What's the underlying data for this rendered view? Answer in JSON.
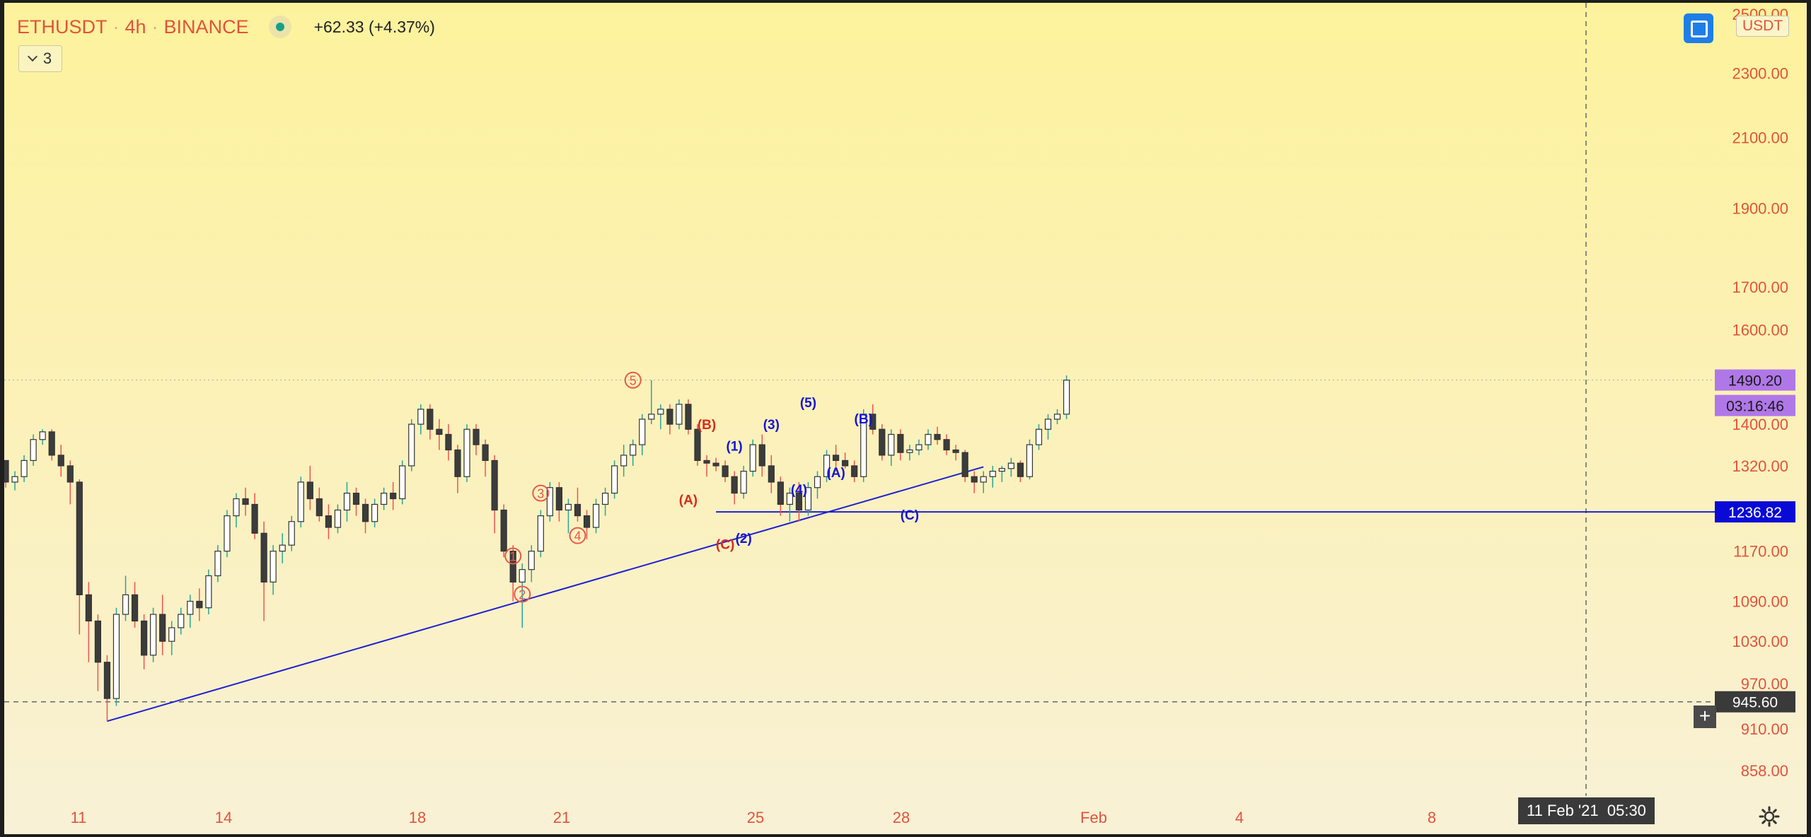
{
  "legend": {
    "symbol": "ETHUSDT",
    "interval": "4h",
    "exchange": "BINANCE",
    "separator": "·",
    "change": "+62.33 (+4.37%)"
  },
  "indicators_toggle": {
    "count": "3"
  },
  "currency_label": "USDT",
  "icons": [
    "chevron-down-icon",
    "fullscreen-icon",
    "plus-icon",
    "gear-icon"
  ],
  "colors": {
    "up_candle": "#ffffff",
    "down_candle": "#3c3c3c",
    "up_wick": "#26a69a",
    "down_wick": "#ef5350",
    "trendline": "#1d1fd4",
    "wave_red": "#d8291c",
    "wave_blue": "#1515d6",
    "price_tag_last": "#b077e8",
    "price_tag_level": "#0a0ad6",
    "axis_text": "#e0533d"
  },
  "chart_data": {
    "type": "candlestick",
    "symbol": "ETHUSDT",
    "interval": "4h",
    "y_scale": "log",
    "ylim": [
      836,
      2540
    ],
    "price_ticks": [
      "2500.00",
      "2300.00",
      "2100.00",
      "1900.00",
      "1700.00",
      "1600.00",
      "1400.00",
      "1320.00",
      "1170.00",
      "1090.00",
      "1030.00",
      "970.00",
      "910.00",
      "858.00"
    ],
    "x_labels": [
      "11",
      "14",
      "18",
      "21",
      "25",
      "28",
      "Feb",
      "4",
      "8"
    ],
    "candles": [
      [
        1330,
        1330,
        1280,
        1290
      ],
      [
        1290,
        1310,
        1275,
        1300
      ],
      [
        1300,
        1340,
        1290,
        1330
      ],
      [
        1330,
        1380,
        1320,
        1370
      ],
      [
        1370,
        1390,
        1360,
        1385
      ],
      [
        1385,
        1390,
        1330,
        1340
      ],
      [
        1340,
        1360,
        1300,
        1320
      ],
      [
        1320,
        1330,
        1250,
        1290
      ],
      [
        1290,
        1295,
        1040,
        1100
      ],
      [
        1100,
        1120,
        1000,
        1060
      ],
      [
        1060,
        1070,
        960,
        1000
      ],
      [
        1000,
        1010,
        920,
        950
      ],
      [
        950,
        1080,
        940,
        1070
      ],
      [
        1070,
        1130,
        1060,
        1100
      ],
      [
        1100,
        1120,
        1050,
        1060
      ],
      [
        1060,
        1070,
        990,
        1010
      ],
      [
        1010,
        1080,
        1000,
        1070
      ],
      [
        1070,
        1100,
        1010,
        1030
      ],
      [
        1030,
        1060,
        1010,
        1050
      ],
      [
        1050,
        1080,
        1040,
        1070
      ],
      [
        1070,
        1100,
        1050,
        1090
      ],
      [
        1090,
        1110,
        1060,
        1080
      ],
      [
        1080,
        1140,
        1070,
        1130
      ],
      [
        1130,
        1180,
        1120,
        1170
      ],
      [
        1170,
        1240,
        1160,
        1230
      ],
      [
        1230,
        1270,
        1210,
        1260
      ],
      [
        1260,
        1280,
        1230,
        1250
      ],
      [
        1250,
        1270,
        1190,
        1200
      ],
      [
        1200,
        1220,
        1060,
        1120
      ],
      [
        1120,
        1180,
        1100,
        1170
      ],
      [
        1170,
        1200,
        1150,
        1180
      ],
      [
        1180,
        1230,
        1170,
        1220
      ],
      [
        1220,
        1300,
        1210,
        1290
      ],
      [
        1290,
        1320,
        1240,
        1260
      ],
      [
        1260,
        1280,
        1220,
        1230
      ],
      [
        1230,
        1250,
        1190,
        1210
      ],
      [
        1210,
        1250,
        1200,
        1240
      ],
      [
        1240,
        1290,
        1220,
        1270
      ],
      [
        1270,
        1280,
        1230,
        1250
      ],
      [
        1250,
        1260,
        1200,
        1220
      ],
      [
        1220,
        1260,
        1210,
        1250
      ],
      [
        1250,
        1280,
        1240,
        1270
      ],
      [
        1270,
        1290,
        1240,
        1260
      ],
      [
        1260,
        1330,
        1250,
        1320
      ],
      [
        1320,
        1410,
        1310,
        1400
      ],
      [
        1400,
        1440,
        1380,
        1430
      ],
      [
        1430,
        1440,
        1370,
        1390
      ],
      [
        1390,
        1410,
        1350,
        1380
      ],
      [
        1380,
        1400,
        1330,
        1350
      ],
      [
        1350,
        1360,
        1270,
        1300
      ],
      [
        1300,
        1400,
        1290,
        1390
      ],
      [
        1390,
        1400,
        1340,
        1360
      ],
      [
        1360,
        1370,
        1300,
        1330
      ],
      [
        1330,
        1340,
        1200,
        1240
      ],
      [
        1240,
        1250,
        1160,
        1170
      ],
      [
        1170,
        1180,
        1090,
        1120
      ],
      [
        1120,
        1150,
        1050,
        1140
      ],
      [
        1140,
        1180,
        1120,
        1170
      ],
      [
        1170,
        1240,
        1160,
        1230
      ],
      [
        1230,
        1290,
        1220,
        1280
      ],
      [
        1280,
        1290,
        1220,
        1240
      ],
      [
        1240,
        1260,
        1200,
        1250
      ],
      [
        1250,
        1280,
        1220,
        1230
      ],
      [
        1230,
        1240,
        1190,
        1210
      ],
      [
        1210,
        1260,
        1200,
        1250
      ],
      [
        1250,
        1280,
        1230,
        1270
      ],
      [
        1270,
        1330,
        1260,
        1320
      ],
      [
        1320,
        1360,
        1300,
        1340
      ],
      [
        1340,
        1370,
        1320,
        1360
      ],
      [
        1360,
        1420,
        1340,
        1410
      ],
      [
        1410,
        1490,
        1400,
        1420
      ],
      [
        1420,
        1440,
        1390,
        1430
      ],
      [
        1430,
        1440,
        1380,
        1400
      ],
      [
        1400,
        1450,
        1390,
        1440
      ],
      [
        1440,
        1450,
        1380,
        1390
      ],
      [
        1390,
        1400,
        1320,
        1330
      ],
      [
        1330,
        1340,
        1300,
        1325
      ],
      [
        1325,
        1335,
        1310,
        1320
      ],
      [
        1320,
        1330,
        1290,
        1300
      ],
      [
        1300,
        1310,
        1250,
        1270
      ],
      [
        1270,
        1320,
        1260,
        1310
      ],
      [
        1310,
        1370,
        1300,
        1360
      ],
      [
        1360,
        1380,
        1300,
        1320
      ],
      [
        1320,
        1340,
        1270,
        1290
      ],
      [
        1290,
        1300,
        1230,
        1250
      ],
      [
        1250,
        1280,
        1220,
        1270
      ],
      [
        1270,
        1290,
        1220,
        1240
      ],
      [
        1240,
        1290,
        1230,
        1280
      ],
      [
        1280,
        1310,
        1260,
        1300
      ],
      [
        1300,
        1350,
        1290,
        1340
      ],
      [
        1340,
        1360,
        1310,
        1330
      ],
      [
        1330,
        1345,
        1315,
        1320
      ],
      [
        1320,
        1330,
        1290,
        1300
      ],
      [
        1300,
        1430,
        1290,
        1420
      ],
      [
        1420,
        1440,
        1380,
        1390
      ],
      [
        1390,
        1400,
        1330,
        1340
      ],
      [
        1340,
        1390,
        1320,
        1380
      ],
      [
        1380,
        1390,
        1330,
        1345
      ],
      [
        1345,
        1360,
        1330,
        1350
      ],
      [
        1350,
        1370,
        1340,
        1360
      ],
      [
        1360,
        1390,
        1350,
        1380
      ],
      [
        1380,
        1395,
        1360,
        1370
      ],
      [
        1370,
        1380,
        1340,
        1350
      ],
      [
        1350,
        1360,
        1330,
        1345
      ],
      [
        1345,
        1350,
        1290,
        1300
      ],
      [
        1300,
        1310,
        1270,
        1290
      ],
      [
        1290,
        1310,
        1270,
        1300
      ],
      [
        1300,
        1320,
        1280,
        1310
      ],
      [
        1310,
        1320,
        1290,
        1315
      ],
      [
        1315,
        1335,
        1300,
        1325
      ],
      [
        1325,
        1330,
        1290,
        1300
      ],
      [
        1300,
        1370,
        1295,
        1360
      ],
      [
        1360,
        1400,
        1350,
        1390
      ],
      [
        1390,
        1420,
        1370,
        1410
      ],
      [
        1410,
        1430,
        1400,
        1420
      ],
      [
        1420,
        1500,
        1410,
        1490
      ]
    ],
    "wave_labels": [
      {
        "text": "1",
        "style": "circled",
        "color": "red",
        "bar": 55,
        "price": 1162
      },
      {
        "text": "2",
        "style": "circled",
        "color": "red",
        "bar": 56,
        "price": 1101
      },
      {
        "text": "3",
        "style": "circled",
        "color": "red",
        "bar": 58,
        "price": 1270
      },
      {
        "text": "4",
        "style": "circled",
        "color": "red",
        "bar": 62,
        "price": 1196
      },
      {
        "text": "5",
        "style": "circled",
        "color": "red",
        "bar": 68,
        "price": 1490
      },
      {
        "text": "(A)",
        "style": "paren",
        "color": "red",
        "bar": 74,
        "price": 1259
      },
      {
        "text": "(B)",
        "style": "paren",
        "color": "red",
        "bar": 76,
        "price": 1400
      },
      {
        "text": "(C)",
        "style": "paren",
        "color": "red",
        "bar": 78,
        "price": 1182
      },
      {
        "text": "(1)",
        "style": "paren",
        "color": "blue",
        "bar": 79,
        "price": 1358
      },
      {
        "text": "(2)",
        "style": "paren",
        "color": "blue",
        "bar": 80,
        "price": 1192
      },
      {
        "text": "(3)",
        "style": "paren",
        "color": "blue",
        "bar": 83,
        "price": 1400
      },
      {
        "text": "(4)",
        "style": "paren",
        "color": "blue",
        "bar": 86,
        "price": 1277
      },
      {
        "text": "(5)",
        "style": "paren",
        "color": "blue",
        "bar": 87,
        "price": 1444
      },
      {
        "text": "(A)",
        "style": "paren",
        "color": "blue",
        "bar": 90,
        "price": 1308
      },
      {
        "text": "(B)",
        "style": "paren",
        "color": "blue",
        "bar": 93,
        "price": 1411
      },
      {
        "text": "(C)",
        "style": "paren",
        "color": "blue",
        "bar": 98,
        "price": 1232
      }
    ],
    "trendline": {
      "start": {
        "bar": 11,
        "price": 920
      },
      "end": {
        "bar": 106,
        "price": 1318
      }
    },
    "horizontal_level": {
      "price": 1236.82,
      "label": "1236.82",
      "start_bar": 77
    },
    "last_price": {
      "price": 1490.2,
      "label": "1490.20",
      "countdown": "03:16:46"
    },
    "crosshair": {
      "price": 945.6,
      "label": "945.60",
      "time_label": "11 Feb '21  05:30"
    }
  }
}
